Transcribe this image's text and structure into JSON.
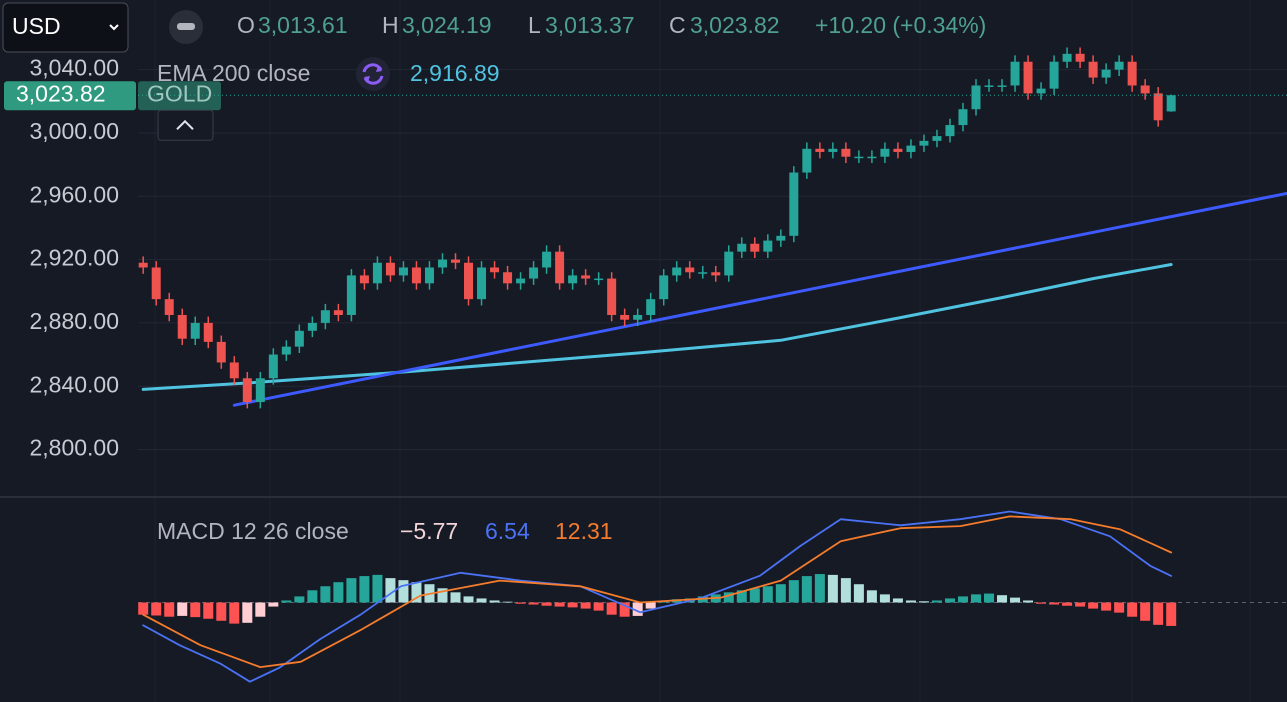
{
  "toolbar": {
    "currency": "USD"
  },
  "chart_data": [
    {
      "type": "candlestick",
      "symbol": "GOLD",
      "ohlc_letters": [
        "O",
        "H",
        "L",
        "C"
      ],
      "ohlc_labels": [
        "3,013.61",
        "3,024.19",
        "3,013.37",
        "3,023.82"
      ],
      "change_label": "+10.20 (+0.34%)",
      "last_price": {
        "value": 3023.82,
        "label": "3,023.82"
      },
      "xlim": [
        -0.4,
        87.9
      ],
      "ylim": [
        2770,
        3084
      ],
      "yticks": [
        {
          "value": 3040,
          "label": "3,040.00"
        },
        {
          "value": 3000,
          "label": "3,000.00"
        },
        {
          "value": 2960,
          "label": "2,960.00"
        },
        {
          "value": 2920,
          "label": "2,920.00"
        },
        {
          "value": 2880,
          "label": "2,880.00"
        },
        {
          "value": 2840,
          "label": "2,840.00"
        },
        {
          "value": 2800,
          "label": "2,800.00"
        }
      ],
      "grid": true,
      "up_color": "#26a69a",
      "down_color": "#ef5350",
      "open": [
        2918,
        2915,
        2895,
        2885,
        2870,
        2880,
        2868,
        2855,
        2845,
        2830,
        2845,
        2860,
        2865,
        2875,
        2880,
        2888,
        2885,
        2910,
        2905,
        2918,
        2910,
        2915,
        2905,
        2915,
        2920,
        2918,
        2895,
        2915,
        2912,
        2905,
        2908,
        2915,
        2925,
        2905,
        2910,
        2908,
        2908,
        2885,
        2882,
        2885,
        2895,
        2910,
        2915,
        2912,
        2912,
        2910,
        2925,
        2930,
        2925,
        2932,
        2935,
        2975,
        2990,
        2988,
        2990,
        2985,
        2985,
        2985,
        2990,
        2988,
        2992,
        2995,
        2998,
        3005,
        3015,
        3030,
        3030,
        3030,
        3045,
        3025,
        3028,
        3045,
        3050,
        3045,
        3035,
        3040,
        3045,
        3030,
        3025,
        3013.61
      ],
      "high": [
        2922,
        2919,
        2899,
        2889,
        2884,
        2884,
        2872,
        2859,
        2849,
        2849,
        2864,
        2869,
        2879,
        2884,
        2892,
        2892,
        2914,
        2914,
        2922,
        2922,
        2919,
        2919,
        2919,
        2924,
        2924,
        2922,
        2919,
        2919,
        2916,
        2912,
        2919,
        2929,
        2929,
        2914,
        2914,
        2912,
        2912,
        2889,
        2889,
        2899,
        2914,
        2919,
        2919,
        2916,
        2916,
        2929,
        2934,
        2934,
        2936,
        2939,
        2979,
        2994,
        2994,
        2994,
        2994,
        2989,
        2989,
        2994,
        2994,
        2996,
        2999,
        3002,
        3009,
        3019,
        3034,
        3034,
        3034,
        3049,
        3049,
        3032,
        3049,
        3054,
        3054,
        3049,
        3044,
        3049,
        3049,
        3034,
        3029,
        3024.19
      ],
      "low": [
        2911,
        2891,
        2881,
        2866,
        2866,
        2864,
        2851,
        2841,
        2826,
        2826,
        2841,
        2856,
        2861,
        2871,
        2876,
        2881,
        2881,
        2901,
        2901,
        2906,
        2906,
        2901,
        2901,
        2911,
        2914,
        2891,
        2891,
        2908,
        2901,
        2901,
        2904,
        2911,
        2901,
        2901,
        2904,
        2904,
        2881,
        2878,
        2878,
        2881,
        2891,
        2906,
        2908,
        2908,
        2906,
        2906,
        2921,
        2921,
        2921,
        2928,
        2931,
        2971,
        2984,
        2984,
        2981,
        2981,
        2981,
        2981,
        2984,
        2984,
        2988,
        2991,
        2994,
        3001,
        3011,
        3026,
        3026,
        3026,
        3021,
        3021,
        3024,
        3041,
        3041,
        3031,
        3031,
        3036,
        3026,
        3021,
        3004,
        3013.37
      ],
      "close": [
        2915,
        2895,
        2885,
        2870,
        2880,
        2868,
        2855,
        2845,
        2830,
        2845,
        2860,
        2865,
        2875,
        2880,
        2888,
        2885,
        2910,
        2905,
        2918,
        2910,
        2915,
        2905,
        2915,
        2920,
        2918,
        2895,
        2915,
        2912,
        2905,
        2908,
        2915,
        2925,
        2905,
        2910,
        2908,
        2908,
        2885,
        2882,
        2885,
        2895,
        2910,
        2915,
        2912,
        2912,
        2910,
        2925,
        2930,
        2925,
        2932,
        2935,
        2975,
        2990,
        2988,
        2990,
        2985,
        2985,
        2985,
        2990,
        2988,
        2992,
        2995,
        2998,
        3005,
        3015,
        3030,
        3030,
        3030,
        3045,
        3025,
        3028,
        3045,
        3050,
        3045,
        3035,
        3040,
        3045,
        3030,
        3025,
        3008,
        3023.82
      ],
      "overlays": [
        {
          "name": "EMA 200 close",
          "value_label": "2,916.89",
          "color": "#4fc3e0",
          "x": [
            0,
            8,
            20,
            38,
            49,
            58,
            66,
            73,
            79
          ],
          "values": [
            2838,
            2842,
            2849,
            2861,
            2869,
            2883,
            2896,
            2908,
            2916.89
          ]
        },
        {
          "color": "#3d5afe",
          "x": [
            7,
            88
          ],
          "values": [
            2828,
            2962
          ]
        }
      ]
    },
    {
      "type": "macd",
      "title": "MACD 12 26 close",
      "xlim": [
        -0.4,
        87.9
      ],
      "ylim": [
        -24,
        24
      ],
      "histogram": {
        "last_label": "−5.77",
        "colors": {
          "up_grow": "#26a69a",
          "up_fall": "#b2dfdb",
          "down_grow": "#ff5252",
          "down_fall": "#ffcdd2"
        },
        "values": [
          -3,
          -3.2,
          -3.5,
          -3.3,
          -3.6,
          -4,
          -4.5,
          -5.2,
          -5,
          -3.5,
          -1,
          0.5,
          1.5,
          3,
          4,
          5,
          6,
          6.5,
          6.8,
          6,
          5.5,
          5,
          4.5,
          3.5,
          2.5,
          1.5,
          1,
          0.5,
          0.2,
          -0.3,
          -0.5,
          -0.8,
          -1,
          -1.2,
          -1.5,
          -2,
          -3,
          -3.5,
          -3.3,
          -1.5,
          0.3,
          0.8,
          1,
          1.5,
          2,
          2.5,
          3,
          3.5,
          4,
          4.5,
          5.5,
          6.5,
          7,
          6.8,
          6,
          4.5,
          3,
          2,
          1,
          0.5,
          0.3,
          0.5,
          1,
          1.5,
          2,
          2.2,
          1.8,
          1.2,
          0.5,
          -0.3,
          -0.5,
          -0.8,
          -1,
          -1.5,
          -2,
          -2.5,
          -3.5,
          -4.5,
          -5.5,
          -5.77
        ]
      },
      "series": [
        {
          "color": "#4a72f5",
          "x": [
            0,
            2.8,
            5.9,
            8.2,
            10.5,
            13.6,
            16.7,
            19.8,
            24.4,
            29,
            33.6,
            38.2,
            42.8,
            47.4,
            50.5,
            53.6,
            58.2,
            62.8,
            66.6,
            70.5,
            74.3,
            77.4,
            79
          ],
          "values": [
            -5.6,
            -10.5,
            -15,
            -19.5,
            -16,
            -9,
            -3,
            4,
            7.3,
            5.4,
            4,
            -2.4,
            1,
            6.6,
            13.9,
            20.5,
            19,
            20.5,
            22.4,
            20.5,
            16.3,
            9,
            6.54
          ]
        },
        {
          "color": "#f57c2c",
          "x": [
            0,
            4.4,
            9,
            12.1,
            16.7,
            21.3,
            27.4,
            33.6,
            38.2,
            44.4,
            49,
            53.6,
            58.2,
            62.8,
            66.6,
            71.3,
            75.1,
            79
          ],
          "values": [
            -3,
            -10.5,
            -15.9,
            -14.6,
            -6.8,
            1.7,
            5.4,
            4,
            0,
            1.2,
            5.4,
            15.1,
            18.3,
            18.8,
            21.2,
            20.5,
            18,
            12.31
          ]
        }
      ]
    }
  ]
}
